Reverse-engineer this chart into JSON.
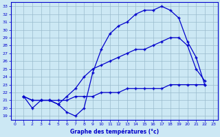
{
  "xlabel": "Graphe des températures (°c)",
  "bg_color": "#cce8f4",
  "line_color": "#0000cc",
  "grid_color": "#99bbcc",
  "xlim": [
    -0.5,
    23.5
  ],
  "ylim": [
    18.5,
    33.5
  ],
  "xticks": [
    0,
    1,
    2,
    3,
    4,
    5,
    6,
    7,
    8,
    9,
    10,
    11,
    12,
    13,
    14,
    15,
    16,
    17,
    18,
    19,
    20,
    21,
    22,
    23
  ],
  "yticks": [
    19,
    20,
    21,
    22,
    23,
    24,
    25,
    26,
    27,
    28,
    29,
    30,
    31,
    32,
    33
  ],
  "s1_x": [
    1,
    2,
    3,
    4,
    5,
    6,
    7,
    8,
    9,
    10,
    11,
    12,
    13,
    14,
    15,
    16,
    17,
    18,
    19,
    20,
    21,
    22
  ],
  "s1_y": [
    21.5,
    20.0,
    21.0,
    21.0,
    20.5,
    19.5,
    19.0,
    20.0,
    24.5,
    27.5,
    29.5,
    30.5,
    31.0,
    32.0,
    32.5,
    32.5,
    33.0,
    32.5,
    31.5,
    28.5,
    26.5,
    23.0
  ],
  "s2_x": [
    1,
    2,
    3,
    4,
    5,
    6,
    7,
    8,
    9,
    10,
    11,
    12,
    13,
    14,
    15,
    16,
    17,
    18,
    19,
    20,
    21,
    22
  ],
  "s2_y": [
    21.5,
    21.0,
    21.0,
    21.0,
    20.5,
    21.5,
    22.5,
    24.0,
    25.0,
    25.5,
    26.0,
    26.5,
    27.0,
    27.5,
    27.5,
    28.0,
    28.5,
    29.0,
    29.0,
    28.0,
    25.0,
    23.5
  ],
  "s3_x": [
    1,
    2,
    3,
    4,
    5,
    6,
    7,
    8,
    9,
    10,
    11,
    12,
    13,
    14,
    15,
    16,
    17,
    18,
    19,
    20,
    21,
    22
  ],
  "s3_y": [
    21.5,
    21.0,
    21.0,
    21.0,
    21.0,
    21.0,
    21.5,
    21.5,
    21.5,
    22.0,
    22.0,
    22.0,
    22.5,
    22.5,
    22.5,
    22.5,
    22.5,
    23.0,
    23.0,
    23.0,
    23.0,
    23.0
  ]
}
